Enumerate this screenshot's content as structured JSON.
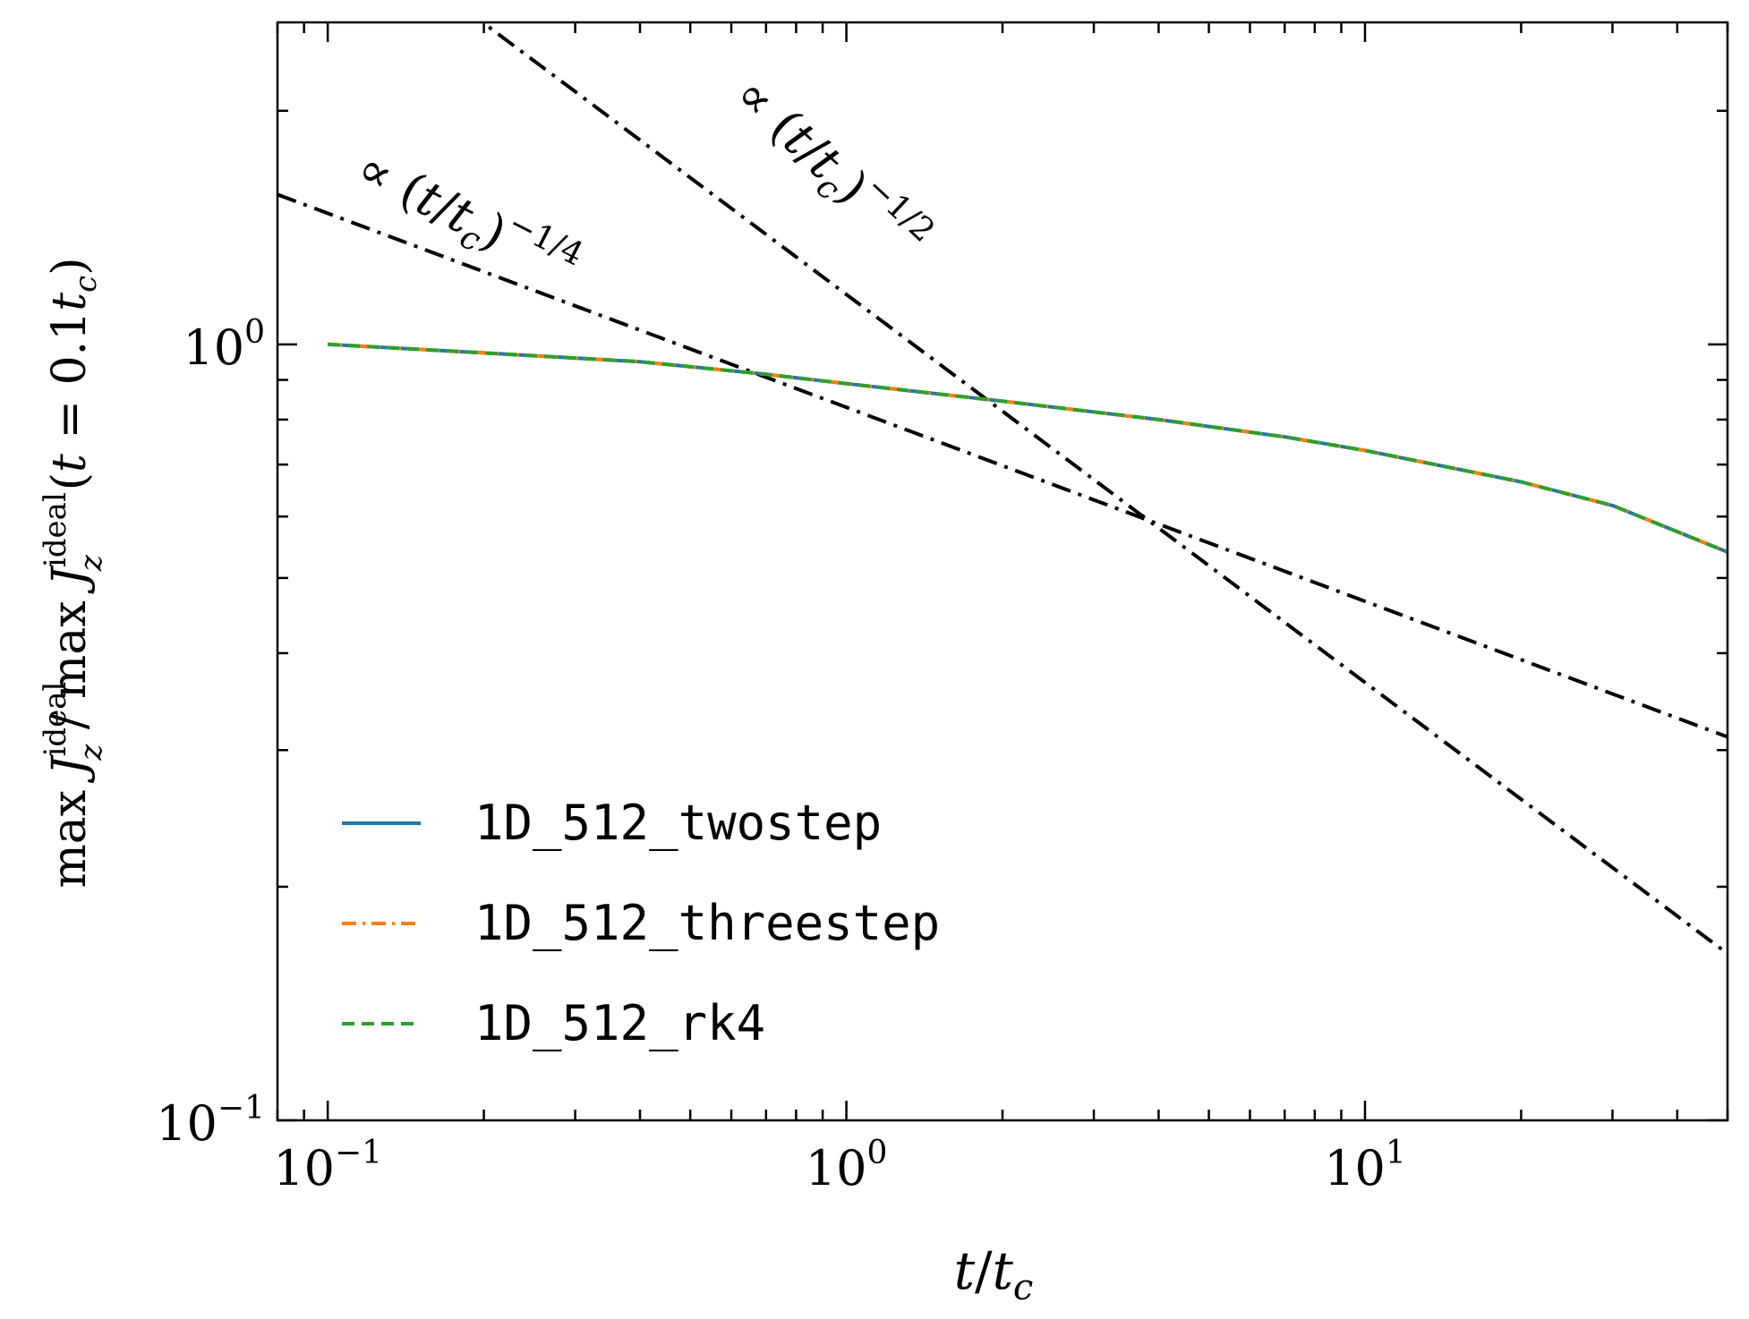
{
  "chart_data": {
    "type": "line",
    "title": "",
    "xlabel": "t/t_c",
    "ylabel": "max J_z^ideal / max J_z^ideal(t = 0.1t_c)",
    "xscale": "log",
    "yscale": "log",
    "xlim": [
      0.08,
      50
    ],
    "ylim": [
      0.1,
      2.6
    ],
    "x_ticks": [
      {
        "value": 0.1,
        "base": "10",
        "exp": "−1"
      },
      {
        "value": 1,
        "base": "10",
        "exp": "0"
      },
      {
        "value": 10,
        "base": "10",
        "exp": "1"
      }
    ],
    "y_ticks": [
      {
        "value": 0.1,
        "base": "10",
        "exp": "−1"
      },
      {
        "value": 1,
        "base": "10",
        "exp": "0"
      }
    ],
    "series": [
      {
        "name": "1D_512_twostep",
        "color": "#1f77b4",
        "dash": "solid",
        "x": [
          0.1,
          0.2,
          0.4,
          0.7,
          1,
          2,
          4,
          7,
          10,
          20,
          30,
          50
        ],
        "y": [
          1.0,
          0.975,
          0.95,
          0.915,
          0.89,
          0.845,
          0.8,
          0.76,
          0.73,
          0.665,
          0.62,
          0.54
        ]
      },
      {
        "name": "1D_512_threestep",
        "color": "#ff7f0e",
        "dash": "dashdot",
        "x": [
          0.1,
          0.2,
          0.4,
          0.7,
          1,
          2,
          4,
          7,
          10,
          20,
          30,
          50
        ],
        "y": [
          1.0,
          0.975,
          0.95,
          0.915,
          0.89,
          0.845,
          0.8,
          0.76,
          0.73,
          0.665,
          0.62,
          0.54
        ]
      },
      {
        "name": "1D_512_rk4",
        "color": "#2ca02c",
        "dash": "dashed",
        "x": [
          0.1,
          0.2,
          0.4,
          0.7,
          1,
          2,
          4,
          7,
          10,
          20,
          30,
          50
        ],
        "y": [
          1.0,
          0.975,
          0.95,
          0.915,
          0.89,
          0.845,
          0.8,
          0.76,
          0.73,
          0.665,
          0.62,
          0.54
        ]
      }
    ],
    "reference_lines": [
      {
        "exponent": -0.25,
        "x": [
          0.08,
          50
        ],
        "y": [
          1.56,
          0.312
        ],
        "annotation": "∝ (t/t_c)^{−1/4}"
      },
      {
        "exponent": -0.5,
        "x": [
          0.08,
          50
        ],
        "y": [
          4.1,
          0.164
        ],
        "annotation": "∝ (t/t_c)^{−1/2}"
      }
    ],
    "legend": {
      "position": "lower-left"
    },
    "grid": false
  }
}
